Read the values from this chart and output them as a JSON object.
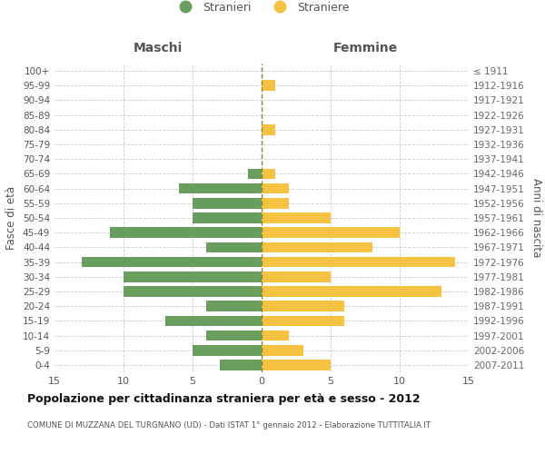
{
  "age_groups": [
    "0-4",
    "5-9",
    "10-14",
    "15-19",
    "20-24",
    "25-29",
    "30-34",
    "35-39",
    "40-44",
    "45-49",
    "50-54",
    "55-59",
    "60-64",
    "65-69",
    "70-74",
    "75-79",
    "80-84",
    "85-89",
    "90-94",
    "95-99",
    "100+"
  ],
  "birth_years": [
    "2007-2011",
    "2002-2006",
    "1997-2001",
    "1992-1996",
    "1987-1991",
    "1982-1986",
    "1977-1981",
    "1972-1976",
    "1967-1971",
    "1962-1966",
    "1957-1961",
    "1952-1956",
    "1947-1951",
    "1942-1946",
    "1937-1941",
    "1932-1936",
    "1927-1931",
    "1922-1926",
    "1917-1921",
    "1912-1916",
    "≤ 1911"
  ],
  "males": [
    3,
    5,
    4,
    7,
    4,
    10,
    10,
    13,
    4,
    11,
    5,
    5,
    6,
    1,
    0,
    0,
    0,
    0,
    0,
    0,
    0
  ],
  "females": [
    5,
    3,
    2,
    6,
    6,
    13,
    5,
    14,
    8,
    10,
    5,
    2,
    2,
    1,
    0,
    0,
    1,
    0,
    0,
    1,
    0
  ],
  "male_color": "#6a9e5e",
  "female_color": "#f5c242",
  "background_color": "#ffffff",
  "grid_color": "#cccccc",
  "title": "Popolazione per cittadinanza straniera per età e sesso - 2012",
  "subtitle": "COMUNE DI MUZZANA DEL TURGNANO (UD) - Dati ISTAT 1° gennaio 2012 - Elaborazione TUTTITALIA.IT",
  "xlabel_left": "Maschi",
  "xlabel_right": "Femmine",
  "ylabel_left": "Fasce di età",
  "ylabel_right": "Anni di nascita",
  "legend_male": "Stranieri",
  "legend_female": "Straniere",
  "xlim": 15,
  "dashed_line_color": "#888833"
}
